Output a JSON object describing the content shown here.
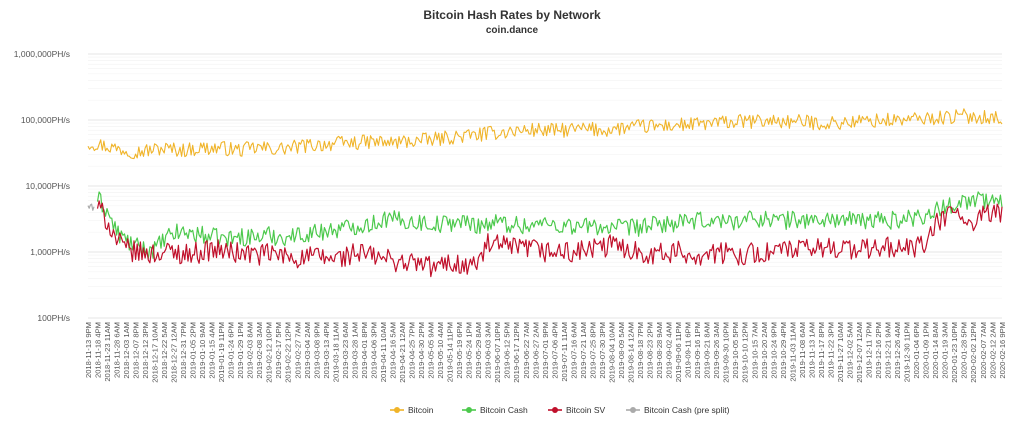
{
  "chart_data": {
    "type": "line",
    "title": "Bitcoin Hash Rates by Network",
    "subtitle": "coin.dance",
    "xlabel": "",
    "ylabel": "",
    "y_scale": "log",
    "ylim": [
      100,
      1000000
    ],
    "y_ticks": [
      "1,000,000PH/s",
      "100,000PH/s",
      "10,000PH/s",
      "1,000PH/s",
      "100PH/s"
    ],
    "grid": true,
    "legend_position": "bottom",
    "x": [
      "2018-11-13 9PM",
      "2018-11-18 4PM",
      "2018-11-23 11AM",
      "2018-11-28 6AM",
      "2018-12-03 1AM",
      "2018-12-07 8PM",
      "2018-12-12 3PM",
      "2018-12-17 10AM",
      "2018-12-22 5AM",
      "2018-12-27 12AM",
      "2018-12-31 7PM",
      "2019-01-05 2PM",
      "2019-01-10 9AM",
      "2019-01-15 4AM",
      "2019-01-19 11PM",
      "2019-01-24 6PM",
      "2019-01-29 1PM",
      "2019-02-03 8AM",
      "2019-02-08 3AM",
      "2019-02-12 10PM",
      "2019-02-17 5PM",
      "2019-02-22 12PM",
      "2019-02-27 7AM",
      "2019-03-04 2AM",
      "2019-03-08 9PM",
      "2019-03-13 4PM",
      "2019-03-18 11AM",
      "2019-03-23 6AM",
      "2019-03-28 1AM",
      "2019-04-01 8PM",
      "2019-04-06 3PM",
      "2019-04-11 10AM",
      "2019-04-16 5AM",
      "2019-04-21 12AM",
      "2019-04-25 7PM",
      "2019-04-30 2PM",
      "2019-05-05 9AM",
      "2019-05-10 4AM",
      "2019-05-14 11PM",
      "2019-05-19 6PM",
      "2019-05-24 1PM",
      "2019-05-29 8AM",
      "2019-06-03 3AM",
      "2019-06-07 10PM",
      "2019-06-12 5PM",
      "2019-06-17 12PM",
      "2019-06-22 7AM",
      "2019-06-27 2AM",
      "2019-07-01 9PM",
      "2019-07-06 4PM",
      "2019-07-11 11AM",
      "2019-07-16 6AM",
      "2019-07-21 1AM",
      "2019-07-25 8PM",
      "2019-07-30 3PM",
      "2019-08-04 10AM",
      "2019-08-09 5AM",
      "2019-08-14 12AM",
      "2019-08-18 7PM",
      "2019-08-23 2PM",
      "2019-08-28 9AM",
      "2019-09-02 4AM",
      "2019-09-06 11PM",
      "2019-09-11 6PM",
      "2019-09-16 1PM",
      "2019-09-21 8AM",
      "2019-09-26 3AM",
      "2019-09-30 10PM",
      "2019-10-05 5PM",
      "2019-10-10 12PM",
      "2019-10-15 7AM",
      "2019-10-20 2AM",
      "2019-10-24 9PM",
      "2019-10-29 4PM",
      "2019-11-03 11AM",
      "2019-11-08 6AM",
      "2019-11-13 1AM",
      "2019-11-17 8PM",
      "2019-11-22 3PM",
      "2019-11-27 10AM",
      "2019-12-02 5AM",
      "2019-12-07 12AM",
      "2019-12-11 7PM",
      "2019-12-16 2PM",
      "2019-12-21 9AM",
      "2019-12-26 4AM",
      "2019-12-30 11PM",
      "2020-01-04 6PM",
      "2020-01-09 1PM",
      "2020-01-14 8AM",
      "2020-01-19 3AM",
      "2020-01-23 10PM",
      "2020-01-28 5PM",
      "2020-02-02 12PM",
      "2020-02-07 7AM",
      "2020-02-12 2AM",
      "2020-02-16 9PM"
    ],
    "series": [
      {
        "name": "Bitcoin",
        "color": "#f0b429",
        "values": [
          45000,
          43000,
          40000,
          37000,
          35000,
          33000,
          34000,
          36000,
          37000,
          36000,
          35000,
          36000,
          38000,
          37000,
          38000,
          36000,
          35000,
          37000,
          38000,
          37000,
          36000,
          38000,
          39000,
          41000,
          42000,
          43000,
          44000,
          45000,
          45000,
          46000,
          47000,
          46000,
          45000,
          47000,
          48000,
          49000,
          50000,
          52000,
          55000,
          56000,
          58000,
          60000,
          62000,
          65000,
          67000,
          68000,
          70000,
          71000,
          70000,
          69000,
          70000,
          72000,
          73000,
          72000,
          70000,
          72000,
          75000,
          77000,
          80000,
          80000,
          81000,
          82000,
          84000,
          85000,
          86000,
          88000,
          90000,
          92000,
          93000,
          95000,
          95000,
          96000,
          97000,
          96000,
          93000,
          94000,
          92000,
          90000,
          89000,
          90000,
          92000,
          95000,
          97000,
          98000,
          99000,
          100000,
          101000,
          103000,
          105000,
          108000,
          110000,
          112000,
          115000,
          113000,
          112000,
          110000,
          108000
        ]
      },
      {
        "name": "Bitcoin Cash",
        "color": "#4cc94c",
        "values": [
          null,
          6500,
          4200,
          2000,
          1500,
          1200,
          1100,
          1100,
          1500,
          1900,
          2000,
          1900,
          1800,
          1700,
          1600,
          1600,
          1700,
          1700,
          1700,
          1800,
          1700,
          1700,
          1800,
          1900,
          2000,
          2100,
          2200,
          2300,
          2500,
          2600,
          2700,
          3200,
          3100,
          3000,
          2900,
          2800,
          2700,
          2600,
          2800,
          2900,
          2700,
          2600,
          2700,
          2800,
          2700,
          2600,
          2500,
          2600,
          2700,
          2600,
          2500,
          2500,
          2400,
          2500,
          2400,
          2300,
          2300,
          2300,
          2400,
          2500,
          2600,
          2700,
          2700,
          2800,
          2900,
          3000,
          3000,
          2900,
          3000,
          3100,
          3200,
          3300,
          3100,
          3000,
          3100,
          3100,
          3000,
          3000,
          3100,
          3200,
          3000,
          2900,
          3000,
          3100,
          3000,
          3100,
          3200,
          3400,
          3700,
          4200,
          4800,
          5500,
          6000,
          6200,
          6000,
          5800,
          5600
        ]
      },
      {
        "name": "Bitcoin SV",
        "color": "#c0102b",
        "values": [
          null,
          5000,
          3000,
          1500,
          1100,
          1000,
          950,
          950,
          1000,
          1000,
          950,
          950,
          1000,
          1100,
          1050,
          1000,
          950,
          950,
          900,
          950,
          900,
          850,
          800,
          850,
          850,
          800,
          800,
          850,
          950,
          950,
          850,
          800,
          750,
          700,
          700,
          650,
          600,
          600,
          700,
          650,
          600,
          700,
          1300,
          1250,
          1200,
          1100,
          1150,
          1100,
          1000,
          1000,
          1000,
          950,
          1050,
          1100,
          1150,
          1300,
          1200,
          1100,
          1000,
          950,
          950,
          950,
          1000,
          900,
          900,
          950,
          950,
          950,
          900,
          950,
          950,
          950,
          1000,
          1100,
          1050,
          1100,
          1100,
          1150,
          1200,
          1200,
          1100,
          1100,
          1100,
          1150,
          1200,
          1100,
          1150,
          1200,
          1300,
          2500,
          3500,
          4000,
          3300,
          2200,
          3500,
          3800,
          3900
        ]
      },
      {
        "name": "Bitcoin Cash (pre split)",
        "color": "#aaaaaa",
        "values": [
          4800,
          null,
          null,
          null,
          null,
          null,
          null,
          null,
          null,
          null,
          null,
          null,
          null,
          null,
          null,
          null,
          null,
          null,
          null,
          null,
          null,
          null,
          null,
          null,
          null,
          null,
          null,
          null,
          null,
          null,
          null,
          null,
          null,
          null,
          null,
          null,
          null,
          null,
          null,
          null,
          null,
          null,
          null,
          null,
          null,
          null,
          null,
          null,
          null,
          null,
          null,
          null,
          null,
          null,
          null,
          null,
          null,
          null,
          null,
          null,
          null,
          null,
          null,
          null,
          null,
          null,
          null,
          null,
          null,
          null,
          null,
          null,
          null,
          null,
          null,
          null,
          null,
          null,
          null,
          null,
          null,
          null,
          null,
          null,
          null,
          null,
          null,
          null,
          null,
          null,
          null,
          null,
          null,
          null,
          null,
          null,
          null
        ]
      }
    ]
  }
}
